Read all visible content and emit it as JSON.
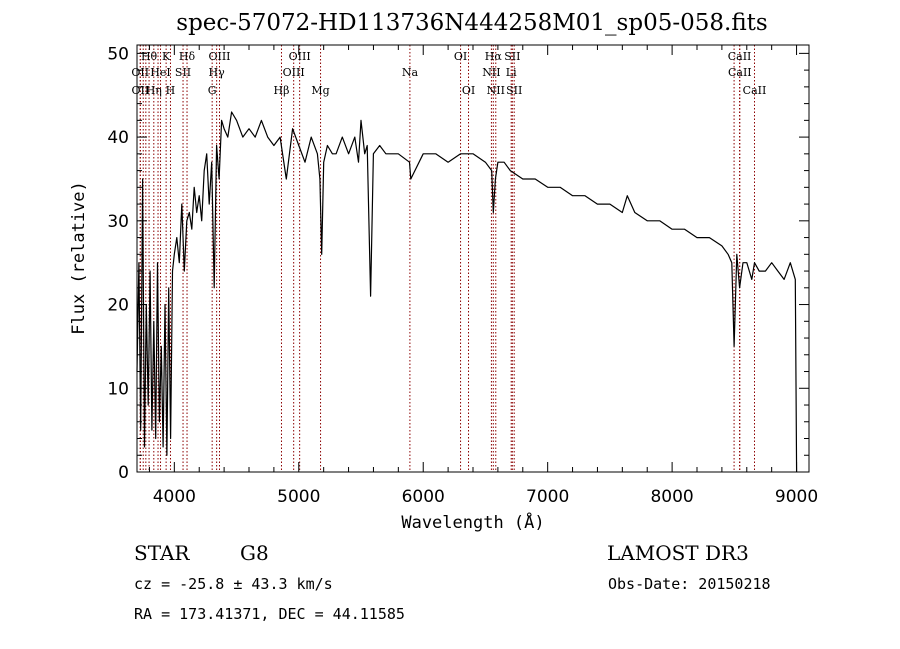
{
  "chart_data": {
    "type": "line",
    "title": "spec-57072-HD113736N444258M01_sp05-058.fits",
    "xlabel": "Wavelength (Å)",
    "ylabel": "Flux (relative)",
    "xlim": [
      3700,
      9100
    ],
    "ylim": [
      0,
      51
    ],
    "x_ticks": [
      4000,
      5000,
      6000,
      7000,
      8000,
      9000
    ],
    "y_ticks": [
      0,
      10,
      20,
      30,
      40,
      50
    ],
    "grid": false,
    "line_color": "#000000",
    "marker_color": "#8b0000",
    "series": [
      {
        "x": [
          3700,
          3715,
          3730,
          3745,
          3760,
          3775,
          3790,
          3805,
          3820,
          3835,
          3850,
          3865,
          3880,
          3895,
          3910,
          3925,
          3940,
          3955,
          3970,
          3985,
          4000,
          4020,
          4040,
          4060,
          4080,
          4100,
          4120,
          4140,
          4160,
          4180,
          4200,
          4220,
          4240,
          4260,
          4280,
          4300,
          4320,
          4340,
          4360,
          4380,
          4400,
          4430,
          4460,
          4500,
          4550,
          4600,
          4650,
          4700,
          4750,
          4800,
          4850,
          4900,
          4950,
          5000,
          5050,
          5100,
          5150,
          5170,
          5184,
          5200,
          5230,
          5270,
          5300,
          5350,
          5400,
          5450,
          5480,
          5500,
          5530,
          5550,
          5577,
          5600,
          5650,
          5700,
          5800,
          5890,
          5900,
          6000,
          6100,
          6200,
          6300,
          6400,
          6500,
          6550,
          6563,
          6580,
          6600,
          6650,
          6700,
          6800,
          6900,
          7000,
          7100,
          7200,
          7300,
          7400,
          7500,
          7600,
          7640,
          7700,
          7800,
          7900,
          8000,
          8100,
          8200,
          8300,
          8400,
          8450,
          8480,
          8498,
          8520,
          8542,
          8570,
          8600,
          8640,
          8662,
          8700,
          8750,
          8800,
          8850,
          8900,
          8950,
          8990,
          9000
        ],
        "y": [
          12,
          25,
          5,
          35,
          3,
          20,
          8,
          24,
          5,
          18,
          4,
          25,
          6,
          15,
          3,
          20,
          2,
          22,
          4,
          24,
          26,
          28,
          25,
          32,
          24,
          30,
          31,
          29,
          34,
          31,
          33,
          30,
          36,
          38,
          32,
          37,
          22,
          39,
          35,
          42,
          41,
          40,
          43,
          42,
          40,
          41,
          40,
          42,
          40,
          39,
          40,
          35,
          41,
          39,
          37,
          40,
          38,
          35,
          26,
          37,
          39,
          38,
          38,
          40,
          38,
          40,
          37,
          42,
          38,
          39,
          21,
          38,
          39,
          38,
          38,
          37,
          35,
          38,
          38,
          37,
          38,
          38,
          37,
          36,
          31,
          35,
          37,
          37,
          36,
          35,
          35,
          34,
          34,
          33,
          33,
          32,
          32,
          31,
          33,
          31,
          30,
          30,
          29,
          29,
          28,
          28,
          27,
          26,
          25,
          15,
          26,
          22,
          25,
          25,
          23,
          25,
          24,
          24,
          25,
          24,
          23,
          25,
          23,
          0
        ]
      }
    ],
    "line_markers": [
      {
        "x": 3726,
        "label": "OII",
        "row": 1
      },
      {
        "x": 3727,
        "label": "OII",
        "row": 2
      },
      {
        "x": 3750,
        "label": "",
        "row": 0
      },
      {
        "x": 3771,
        "label": "",
        "row": 0
      },
      {
        "x": 3797,
        "label": "Hθ",
        "row": 0
      },
      {
        "x": 3835,
        "label": "Hη",
        "row": 2
      },
      {
        "x": 3869,
        "label": "",
        "row": 0
      },
      {
        "x": 3889,
        "label": "HeI",
        "row": 1
      },
      {
        "x": 3934,
        "label": "K",
        "row": 0
      },
      {
        "x": 3969,
        "label": "H",
        "row": 2
      },
      {
        "x": 4070,
        "label": "SII",
        "row": 1
      },
      {
        "x": 4102,
        "label": "Hδ",
        "row": 0
      },
      {
        "x": 4304,
        "label": "G",
        "row": 2
      },
      {
        "x": 4340,
        "label": "Hγ",
        "row": 1
      },
      {
        "x": 4363,
        "label": "OIII",
        "row": 0
      },
      {
        "x": 4861,
        "label": "Hβ",
        "row": 2
      },
      {
        "x": 4959,
        "label": "OIII",
        "row": 1
      },
      {
        "x": 5007,
        "label": "OIII",
        "row": 0
      },
      {
        "x": 5175,
        "label": "Mg",
        "row": 2
      },
      {
        "x": 5893,
        "label": "Na",
        "row": 1
      },
      {
        "x": 6300,
        "label": "OI",
        "row": 0
      },
      {
        "x": 6364,
        "label": "OI",
        "row": 2
      },
      {
        "x": 6548,
        "label": "NII",
        "row": 1
      },
      {
        "x": 6563,
        "label": "Hα",
        "row": 0
      },
      {
        "x": 6583,
        "label": "NII",
        "row": 2
      },
      {
        "x": 6707,
        "label": "Li",
        "row": 1
      },
      {
        "x": 6716,
        "label": "SII",
        "row": 0
      },
      {
        "x": 6731,
        "label": "SII",
        "row": 2
      },
      {
        "x": 8498,
        "label": "",
        "row": 0
      },
      {
        "x": 8542,
        "label": "CaII",
        "row": 0
      },
      {
        "x": 8544,
        "label": "CaII",
        "row": 1
      },
      {
        "x": 8662,
        "label": "CaII",
        "row": 2
      }
    ]
  },
  "info": {
    "class": "STAR",
    "subclass": "G8",
    "survey": "LAMOST DR3",
    "cz": "cz = -25.8 ± 43.3 km/s",
    "obs_date": "Obs-Date: 20150218",
    "coords": "RA = 173.41371, DEC =  44.11585"
  }
}
